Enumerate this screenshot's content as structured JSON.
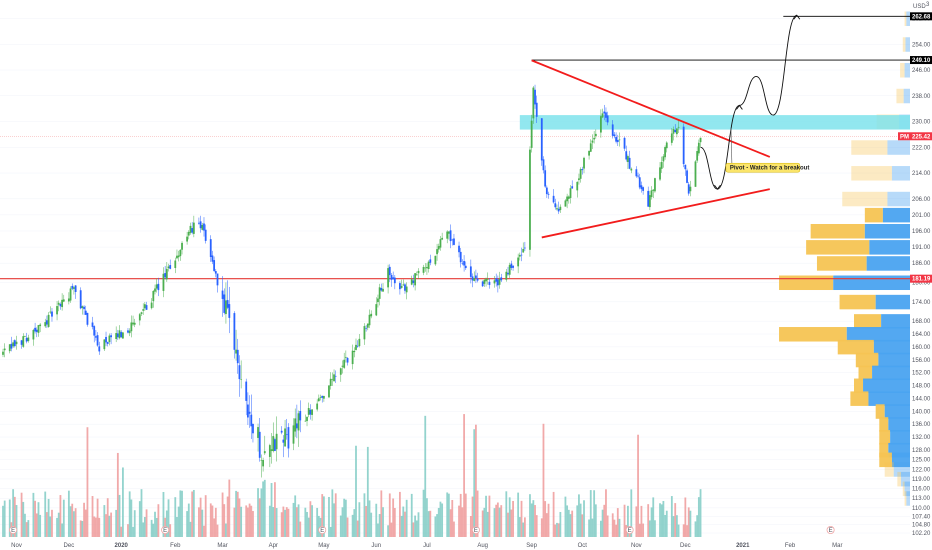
{
  "chart_data": {
    "type": "candlestick",
    "currency": "USD",
    "currency_note": "3",
    "colors": {
      "up": "#26a69a",
      "up_body": "#4caf50",
      "down": "#2962ff",
      "volume_up": "#80cbc4",
      "volume_down": "#ef9a9a",
      "triangle": "#f21c1c",
      "pivot_zone": "#7fe3ec",
      "support_line": "#e53935",
      "level_line": "#000000",
      "vp_up": "#f5c453",
      "vp_down": "#4aa3f0"
    },
    "x_axis": {
      "labels": [
        "Nov",
        "Dec",
        "2020",
        "Feb",
        "Mar",
        "Apr",
        "May",
        "Jun",
        "Jul",
        "Aug",
        "Sep",
        "Oct",
        "Nov",
        "Dec",
        "2021",
        "Feb",
        "Mar"
      ],
      "bold": [
        "2020",
        "2021"
      ]
    },
    "y_axis": {
      "ylim": [
        100.2,
        264.0
      ],
      "ticks": [
        "262.00",
        "254.00",
        "246.00",
        "238.00",
        "230.00",
        "222.00",
        "214.00",
        "206.00",
        "201.00",
        "196.00",
        "191.00",
        "186.00",
        "180.00",
        "174.00",
        "168.00",
        "164.00",
        "160.00",
        "156.00",
        "152.00",
        "148.00",
        "144.00",
        "140.00",
        "136.00",
        "132.00",
        "128.00",
        "125.00",
        "122.00",
        "119.00",
        "116.00",
        "113.00",
        "110.00",
        "107.40",
        "104.80",
        "102.20"
      ]
    },
    "price_tags": [
      {
        "label": "262.68",
        "value": 262.68,
        "style": "black"
      },
      {
        "label": "249.10",
        "value": 249.1,
        "style": "black"
      },
      {
        "label": "225.42",
        "prefix": "PM",
        "value": 225.42,
        "style": "red-pm"
      },
      {
        "label": "181.19",
        "value": 181.19,
        "style": "red"
      }
    ],
    "horizontal_levels": [
      {
        "value": 181.19,
        "color": "#e53935"
      },
      {
        "value": 249.1,
        "color": "#000000"
      },
      {
        "value": 262.68,
        "color": "#000000"
      }
    ],
    "pivot_zone": {
      "from": 227.5,
      "to": 232.0
    },
    "annotation": "Pivot - Watch for a breakout",
    "earnings_markers": [
      "E",
      "E",
      "E",
      "E",
      "E",
      "E"
    ],
    "anchors": [
      {
        "date": "2019-10-24",
        "price": 158
      },
      {
        "date": "2019-11-15",
        "price": 166
      },
      {
        "date": "2019-12-05",
        "price": 178
      },
      {
        "date": "2019-12-20",
        "price": 160
      },
      {
        "date": "2020-01-10",
        "price": 167
      },
      {
        "date": "2020-01-28",
        "price": 182
      },
      {
        "date": "2020-02-14",
        "price": 198
      },
      {
        "date": "2020-02-20",
        "price": 196
      },
      {
        "date": "2020-03-05",
        "price": 168
      },
      {
        "date": "2020-03-20",
        "price": 135
      },
      {
        "date": "2020-03-25",
        "price": 128
      },
      {
        "date": "2020-04-10",
        "price": 132
      },
      {
        "date": "2020-04-30",
        "price": 145
      },
      {
        "date": "2020-05-20",
        "price": 160
      },
      {
        "date": "2020-06-08",
        "price": 183
      },
      {
        "date": "2020-06-15",
        "price": 177
      },
      {
        "date": "2020-07-02",
        "price": 186
      },
      {
        "date": "2020-07-13",
        "price": 196
      },
      {
        "date": "2020-07-28",
        "price": 180
      },
      {
        "date": "2020-08-12",
        "price": 180
      },
      {
        "date": "2020-08-28",
        "price": 190
      },
      {
        "date": "2020-09-02",
        "price": 240
      },
      {
        "date": "2020-09-09",
        "price": 209
      },
      {
        "date": "2020-09-18",
        "price": 202
      },
      {
        "date": "2020-09-30",
        "price": 215
      },
      {
        "date": "2020-10-13",
        "price": 233
      },
      {
        "date": "2020-10-28",
        "price": 218
      },
      {
        "date": "2020-11-09",
        "price": 205
      },
      {
        "date": "2020-11-20",
        "price": 224
      },
      {
        "date": "2020-11-27",
        "price": 228
      },
      {
        "date": "2020-12-03",
        "price": 207
      },
      {
        "date": "2020-12-10",
        "price": 225
      }
    ],
    "triangle": {
      "upper": [
        {
          "date": "2020-09-01",
          "price": 249
        },
        {
          "date": "2021-01-20",
          "price": 219
        }
      ],
      "lower": [
        {
          "date": "2020-09-07",
          "price": 194
        },
        {
          "date": "2021-01-20",
          "price": 209
        }
      ]
    },
    "projection": [
      {
        "date": "2020-12-10",
        "price": 222
      },
      {
        "date": "2020-12-20",
        "price": 209
      },
      {
        "date": "2021-01-02",
        "price": 235
      },
      {
        "date": "2021-01-12",
        "price": 244
      },
      {
        "date": "2021-01-22",
        "price": 232
      },
      {
        "date": "2021-02-05",
        "price": 263
      }
    ],
    "volume_profile": [
      {
        "price": 262,
        "up": 2,
        "down": 4
      },
      {
        "price": 254,
        "up": 3,
        "down": 5
      },
      {
        "price": 246,
        "up": 5,
        "down": 6
      },
      {
        "price": 238,
        "up": 8,
        "down": 7
      },
      {
        "price": 230,
        "up": 25,
        "down": 12
      },
      {
        "price": 222,
        "up": 40,
        "down": 25
      },
      {
        "price": 214,
        "up": 45,
        "down": 20
      },
      {
        "price": 206,
        "up": 50,
        "down": 25
      },
      {
        "price": 201,
        "up": 20,
        "down": 30
      },
      {
        "price": 196,
        "up": 60,
        "down": 50
      },
      {
        "price": 191,
        "up": 70,
        "down": 45
      },
      {
        "price": 186,
        "up": 55,
        "down": 48
      },
      {
        "price": 180,
        "up": 60,
        "down": 85
      },
      {
        "price": 174,
        "up": 40,
        "down": 38
      },
      {
        "price": 168,
        "up": 30,
        "down": 32
      },
      {
        "price": 164,
        "up": 75,
        "down": 70
      },
      {
        "price": 160,
        "up": 40,
        "down": 40
      },
      {
        "price": 156,
        "up": 25,
        "down": 35
      },
      {
        "price": 152,
        "up": 15,
        "down": 42
      },
      {
        "price": 148,
        "up": 10,
        "down": 52
      },
      {
        "price": 144,
        "up": 20,
        "down": 46
      },
      {
        "price": 140,
        "up": 10,
        "down": 28
      },
      {
        "price": 136,
        "up": 10,
        "down": 24
      },
      {
        "price": 132,
        "up": 12,
        "down": 22
      },
      {
        "price": 128,
        "up": 10,
        "down": 24
      },
      {
        "price": 125,
        "up": 14,
        "down": 20
      },
      {
        "price": 122,
        "up": 10,
        "down": 18
      },
      {
        "price": 119,
        "up": 4,
        "down": 10
      },
      {
        "price": 116,
        "up": 2,
        "down": 6
      },
      {
        "price": 113,
        "up": 2,
        "down": 4
      }
    ]
  }
}
